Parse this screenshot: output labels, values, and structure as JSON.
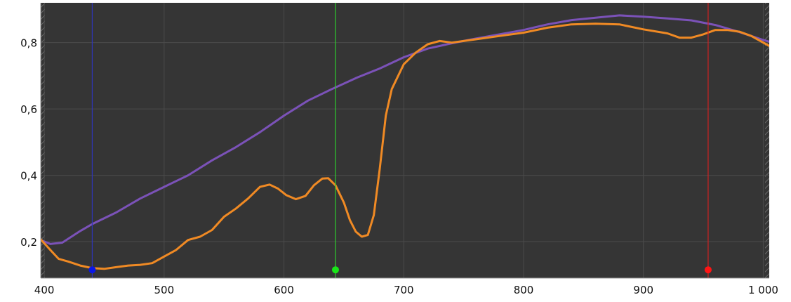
{
  "chart_data": {
    "type": "line",
    "title": "",
    "xlabel": "",
    "ylabel": "",
    "xlim": [
      397,
      1005
    ],
    "ylim": [
      0.09,
      0.92
    ],
    "grid": true,
    "x_ticks": [
      {
        "value": 400,
        "label": "400"
      },
      {
        "value": 500,
        "label": "500"
      },
      {
        "value": 600,
        "label": "600"
      },
      {
        "value": 700,
        "label": "700"
      },
      {
        "value": 800,
        "label": "800"
      },
      {
        "value": 900,
        "label": "900"
      },
      {
        "value": 1000,
        "label": "1 000"
      }
    ],
    "y_ticks": [
      {
        "value": 0.2,
        "label": "0,2"
      },
      {
        "value": 0.4,
        "label": "0,4"
      },
      {
        "value": 0.6,
        "label": "0,6"
      },
      {
        "value": 0.8,
        "label": "0,8"
      }
    ],
    "series": [
      {
        "color": "#7b52b8",
        "points": [
          [
            397,
            0.205
          ],
          [
            405,
            0.193
          ],
          [
            415,
            0.197
          ],
          [
            430,
            0.232
          ],
          [
            440,
            0.253
          ],
          [
            460,
            0.288
          ],
          [
            480,
            0.33
          ],
          [
            500,
            0.365
          ],
          [
            520,
            0.4
          ],
          [
            540,
            0.445
          ],
          [
            560,
            0.485
          ],
          [
            580,
            0.53
          ],
          [
            600,
            0.58
          ],
          [
            620,
            0.625
          ],
          [
            640,
            0.66
          ],
          [
            660,
            0.693
          ],
          [
            680,
            0.722
          ],
          [
            700,
            0.756
          ],
          [
            720,
            0.782
          ],
          [
            740,
            0.798
          ],
          [
            760,
            0.812
          ],
          [
            780,
            0.825
          ],
          [
            800,
            0.838
          ],
          [
            820,
            0.855
          ],
          [
            840,
            0.868
          ],
          [
            860,
            0.875
          ],
          [
            880,
            0.882
          ],
          [
            900,
            0.878
          ],
          [
            920,
            0.873
          ],
          [
            940,
            0.867
          ],
          [
            960,
            0.853
          ],
          [
            980,
            0.832
          ],
          [
            1000,
            0.808
          ],
          [
            1005,
            0.803
          ]
        ]
      },
      {
        "color": "#f08a24",
        "points": [
          [
            397,
            0.207
          ],
          [
            405,
            0.175
          ],
          [
            412,
            0.148
          ],
          [
            420,
            0.14
          ],
          [
            430,
            0.128
          ],
          [
            440,
            0.12
          ],
          [
            450,
            0.118
          ],
          [
            460,
            0.123
          ],
          [
            470,
            0.128
          ],
          [
            480,
            0.13
          ],
          [
            490,
            0.135
          ],
          [
            500,
            0.155
          ],
          [
            510,
            0.175
          ],
          [
            520,
            0.205
          ],
          [
            530,
            0.215
          ],
          [
            540,
            0.235
          ],
          [
            550,
            0.275
          ],
          [
            560,
            0.3
          ],
          [
            570,
            0.33
          ],
          [
            580,
            0.365
          ],
          [
            588,
            0.372
          ],
          [
            595,
            0.36
          ],
          [
            602,
            0.34
          ],
          [
            610,
            0.328
          ],
          [
            618,
            0.338
          ],
          [
            625,
            0.37
          ],
          [
            632,
            0.39
          ],
          [
            637,
            0.391
          ],
          [
            643,
            0.37
          ],
          [
            650,
            0.318
          ],
          [
            655,
            0.265
          ],
          [
            660,
            0.23
          ],
          [
            665,
            0.215
          ],
          [
            670,
            0.22
          ],
          [
            675,
            0.28
          ],
          [
            680,
            0.42
          ],
          [
            685,
            0.58
          ],
          [
            690,
            0.66
          ],
          [
            700,
            0.735
          ],
          [
            710,
            0.77
          ],
          [
            720,
            0.795
          ],
          [
            730,
            0.805
          ],
          [
            740,
            0.8
          ],
          [
            760,
            0.81
          ],
          [
            780,
            0.82
          ],
          [
            800,
            0.83
          ],
          [
            820,
            0.845
          ],
          [
            840,
            0.855
          ],
          [
            860,
            0.857
          ],
          [
            880,
            0.855
          ],
          [
            900,
            0.84
          ],
          [
            920,
            0.828
          ],
          [
            930,
            0.815
          ],
          [
            940,
            0.815
          ],
          [
            950,
            0.825
          ],
          [
            960,
            0.838
          ],
          [
            970,
            0.838
          ],
          [
            980,
            0.833
          ],
          [
            990,
            0.82
          ],
          [
            1005,
            0.79
          ]
        ]
      }
    ],
    "markers": [
      {
        "x": 440,
        "color": "#0a17e6",
        "line_color": "#2f36b8",
        "dot_y": 0.115
      },
      {
        "x": 643,
        "color": "#19e619",
        "line_color": "#2ecc2e",
        "dot_y": 0.115
      },
      {
        "x": 954,
        "color": "#ff1414",
        "line_color": "#d62020",
        "dot_y": 0.115
      }
    ],
    "colors": {
      "plot_background": "#353535",
      "grid": "#4b4b4b",
      "axis": "#9a9a9a",
      "hatch": "#6c6c6c"
    }
  }
}
